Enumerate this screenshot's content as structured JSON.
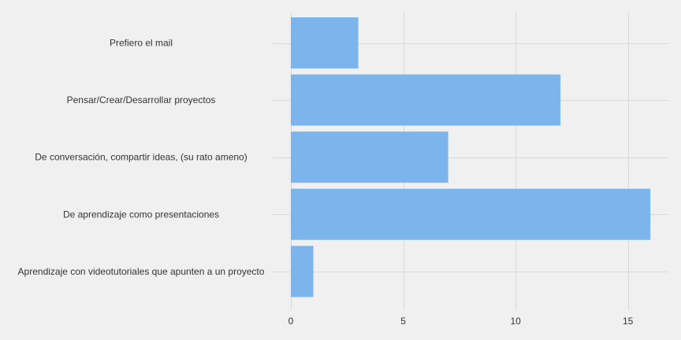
{
  "chart_data": {
    "type": "bar",
    "orientation": "horizontal",
    "categories": [
      "Prefiero el mail",
      "Pensar/Crear/Desarrollar proyectos",
      "De conversación, compartir ideas, (su rato ameno)",
      "De aprendizaje como presentaciones",
      "Aprendizaje con videotutoriales que apunten a un proyecto"
    ],
    "values": [
      3,
      12,
      7,
      16,
      1
    ],
    "title": "",
    "xlabel": "",
    "ylabel": "",
    "xlim": [
      0,
      16.8
    ],
    "xticks": [
      0,
      5,
      10,
      15
    ],
    "grid": true,
    "legend": "none",
    "bar_color": "#7cb4ec",
    "grid_color": "#d8d8d8",
    "background_color": "#f0f0f0"
  }
}
